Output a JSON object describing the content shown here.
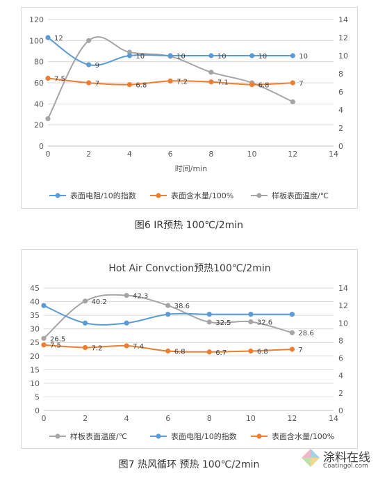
{
  "figure1": {
    "caption": "图6 IR预热 100℃/2min",
    "xlabel": "时间/min"
  },
  "figure2": {
    "caption": "图7 热风循环 预热 100℃/2min",
    "title": "Hot Air Convction预热100℃/2min"
  },
  "watermark": {
    "main": "涂料在线",
    "sub": "Coatingol.com"
  },
  "chart_data": [
    {
      "type": "line",
      "title": "",
      "xlabel": "时间/min",
      "ylabel": "",
      "x": [
        0,
        2,
        4,
        6,
        8,
        10,
        12
      ],
      "xlim": [
        0,
        14
      ],
      "xticks": [
        0,
        2,
        4,
        6,
        8,
        10,
        12,
        14
      ],
      "ylim": [
        0,
        120
      ],
      "yticks": [
        0,
        20,
        40,
        60,
        80,
        100,
        120
      ],
      "y2lim": [
        0,
        14
      ],
      "y2ticks": [
        0,
        2,
        4,
        6,
        8,
        10,
        12,
        14
      ],
      "grid": true,
      "legend": "bottom",
      "series": [
        {
          "name": "表面电阻/10的指数",
          "axis": "right",
          "color": "#5b9bd5",
          "values": [
            12,
            9,
            10,
            10,
            10,
            10,
            10
          ],
          "labels": [
            "12",
            "9",
            "10",
            "10",
            "10",
            "10",
            "10"
          ]
        },
        {
          "name": "表面含水量/100%",
          "axis": "right",
          "color": "#ed7d31",
          "values": [
            7.5,
            7,
            6.8,
            7.2,
            7.1,
            6.8,
            7
          ],
          "labels": [
            "7.5",
            "7",
            "6.8",
            "7.2",
            "7.1",
            "6.8",
            "7"
          ]
        },
        {
          "name": "样板表面温度/℃",
          "axis": "left",
          "color": "#a5a5a5",
          "values": [
            26,
            100,
            89,
            85,
            70,
            60,
            42
          ],
          "labels": []
        }
      ]
    },
    {
      "type": "line",
      "title": "Hot Air Convction预热100℃/2min",
      "xlabel": "",
      "ylabel": "",
      "x": [
        0,
        2,
        4,
        6,
        8,
        10,
        12
      ],
      "xlim": [
        0,
        14
      ],
      "xticks": [
        0,
        2,
        4,
        6,
        8,
        10,
        12,
        14
      ],
      "ylim": [
        0,
        45
      ],
      "yticks": [
        0,
        5,
        10,
        15,
        20,
        25,
        30,
        35,
        40,
        45
      ],
      "y2lim": [
        0,
        14
      ],
      "y2ticks": [
        0,
        2,
        4,
        6,
        8,
        10,
        12,
        14
      ],
      "grid": true,
      "legend": "bottom",
      "series": [
        {
          "name": "样板表面温度/℃",
          "axis": "left",
          "color": "#a5a5a5",
          "values": [
            26.5,
            40.2,
            42.3,
            38.6,
            32.5,
            32.6,
            28.6
          ],
          "labels": [
            "26.5",
            "40.2",
            "42.3",
            "38.6",
            "32.5",
            "32.6",
            "28.6"
          ]
        },
        {
          "name": "表面电阻/10的指数",
          "axis": "right",
          "color": "#5b9bd5",
          "values": [
            12,
            10,
            10,
            11,
            11,
            11,
            11
          ],
          "labels": []
        },
        {
          "name": "表面含水量/100%",
          "axis": "right",
          "color": "#ed7d31",
          "values": [
            7.5,
            7.2,
            7.4,
            6.8,
            6.7,
            6.8,
            7
          ],
          "labels": [
            "7.5",
            "7.2",
            "7.4",
            "6.8",
            "6.7",
            "6.8",
            "7"
          ]
        }
      ]
    }
  ]
}
